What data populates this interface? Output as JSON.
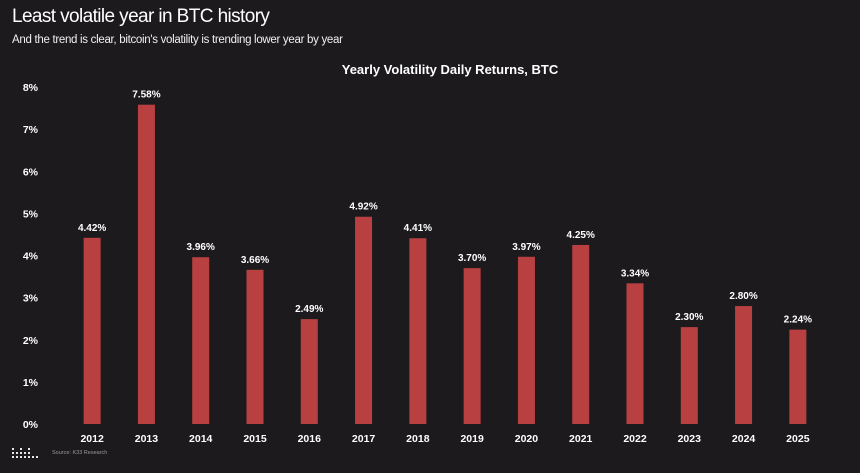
{
  "headline": "Least volatile year in BTC history",
  "subheadline": "And the trend is clear, bitcoin's volatility is trending lower year by year",
  "source": "Source: K33 Research",
  "colors": {
    "background": "#1c1a1d",
    "bar": "#b84040",
    "text": "#ffffff"
  },
  "chart_data": {
    "type": "bar",
    "title": "Yearly Volatility Daily Returns, BTC",
    "xlabel": "",
    "ylabel": "",
    "categories": [
      "2012",
      "2013",
      "2014",
      "2015",
      "2016",
      "2017",
      "2018",
      "2019",
      "2020",
      "2021",
      "2022",
      "2023",
      "2024",
      "2025"
    ],
    "values": [
      4.42,
      7.58,
      3.96,
      3.66,
      2.49,
      4.92,
      4.41,
      3.7,
      3.97,
      4.25,
      3.34,
      2.3,
      2.8,
      2.24
    ],
    "value_labels": [
      "4.42%",
      "7.58%",
      "3.96%",
      "3.66%",
      "2.49%",
      "4.92%",
      "4.41%",
      "3.70%",
      "3.97%",
      "4.25%",
      "3.34%",
      "2.30%",
      "2.80%",
      "2.24%"
    ],
    "ylim": [
      0,
      8
    ],
    "yticks": [
      "0%",
      "1%",
      "2%",
      "3%",
      "4%",
      "5%",
      "6%",
      "7%",
      "8%"
    ],
    "grid": false,
    "legend": "none"
  }
}
